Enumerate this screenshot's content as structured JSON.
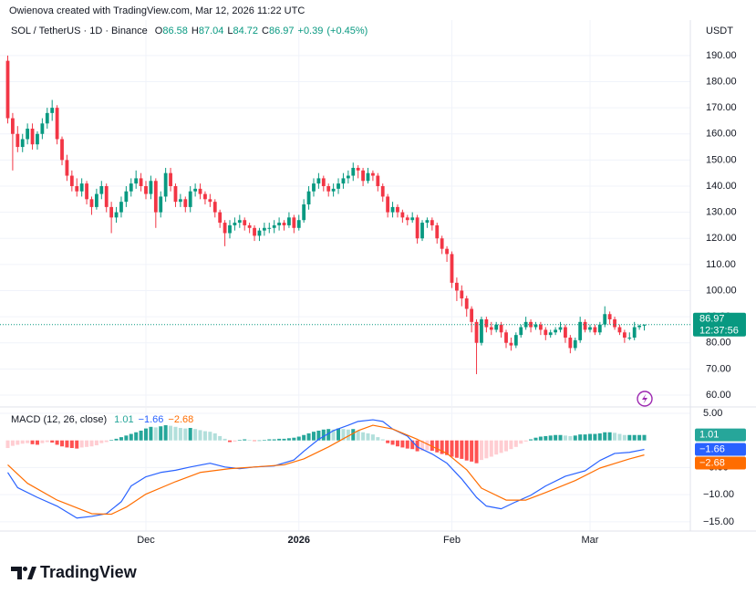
{
  "header": {
    "credit": "Owienova created with TradingView.com, Mar 12, 2026 11:22 UTC"
  },
  "chart_data": [
    {
      "type": "candlestick",
      "title": "SOL / TetherUS · 1D · Binance",
      "ohlc_letters": [
        "O",
        "H",
        "L",
        "C"
      ],
      "change": {
        "value": 0.39,
        "label": "+0.39"
      },
      "change_pct": {
        "value": 0.45,
        "label": "(+0.45%)"
      },
      "y_axis_label": "USDT",
      "countdown": "12:37:56",
      "up_color": "#089981",
      "down_color": "#f23645",
      "grid": true,
      "ylim": [
        55.8,
        194.5
      ],
      "yticks": [
        {
          "value": 60,
          "label": "60.00"
        },
        {
          "value": 70,
          "label": "70.00"
        },
        {
          "value": 80,
          "label": "80.00"
        },
        {
          "value": 90,
          "label": "90.00"
        },
        {
          "value": 100,
          "label": "100.00"
        },
        {
          "value": 110,
          "label": "110.00"
        },
        {
          "value": 120,
          "label": "120.00"
        },
        {
          "value": 130,
          "label": "130.00"
        },
        {
          "value": 140,
          "label": "140.00"
        },
        {
          "value": 150,
          "label": "150.00"
        },
        {
          "value": 160,
          "label": "160.00"
        },
        {
          "value": 170,
          "label": "170.00"
        },
        {
          "value": 180,
          "label": "180.00"
        },
        {
          "value": 190,
          "label": "190.00"
        }
      ],
      "ohlc": [
        [
          188,
          190,
          164,
          166
        ],
        [
          166,
          168,
          146,
          160
        ],
        [
          160,
          163,
          153,
          155
        ],
        [
          155,
          160,
          153,
          158
        ],
        [
          158,
          164,
          156,
          162
        ],
        [
          162,
          164,
          154,
          156
        ],
        [
          156,
          161,
          154,
          160
        ],
        [
          160,
          166,
          158,
          164
        ],
        [
          164,
          170,
          162,
          168
        ],
        [
          168,
          173,
          165,
          170
        ],
        [
          170,
          171,
          156,
          158
        ],
        [
          158,
          159,
          148,
          150
        ],
        [
          150,
          152,
          142,
          144
        ],
        [
          144,
          146,
          138,
          140
        ],
        [
          140,
          143,
          136,
          138
        ],
        [
          138,
          143,
          136,
          141
        ],
        [
          141,
          142,
          133,
          135
        ],
        [
          135,
          136,
          129,
          132
        ],
        [
          132,
          139,
          131,
          137
        ],
        [
          137,
          142,
          135,
          140
        ],
        [
          140,
          141,
          130,
          132
        ],
        [
          132,
          134,
          122,
          128
        ],
        [
          128,
          132,
          126,
          130
        ],
        [
          130,
          136,
          128,
          134
        ],
        [
          134,
          140,
          132,
          138
        ],
        [
          138,
          143,
          136,
          141
        ],
        [
          141,
          146,
          139,
          143
        ],
        [
          143,
          145,
          138,
          140
        ],
        [
          140,
          142,
          135,
          137
        ],
        [
          137,
          144,
          135,
          142
        ],
        [
          142,
          143,
          124,
          130
        ],
        [
          130,
          138,
          128,
          136
        ],
        [
          136,
          147,
          134,
          145
        ],
        [
          145,
          147,
          138,
          140
        ],
        [
          140,
          141,
          132,
          134
        ],
        [
          134,
          137,
          132,
          135
        ],
        [
          135,
          136,
          130,
          132
        ],
        [
          132,
          140,
          130,
          138
        ],
        [
          138,
          141,
          136,
          139
        ],
        [
          139,
          141,
          135,
          137
        ],
        [
          137,
          138,
          133,
          135
        ],
        [
          135,
          137,
          132,
          134
        ],
        [
          134,
          135,
          128,
          130
        ],
        [
          130,
          131,
          124,
          126
        ],
        [
          126,
          127,
          117,
          122
        ],
        [
          122,
          127,
          120,
          125
        ],
        [
          125,
          128,
          123,
          126
        ],
        [
          126,
          129,
          124,
          127
        ],
        [
          127,
          128,
          123,
          125
        ],
        [
          125,
          126,
          122,
          124
        ],
        [
          124,
          125,
          119,
          121
        ],
        [
          121,
          124,
          119,
          123
        ],
        [
          123,
          126,
          121,
          124
        ],
        [
          124,
          126,
          122,
          124
        ],
        [
          124,
          127,
          122,
          125
        ],
        [
          125,
          128,
          123,
          126
        ],
        [
          126,
          127,
          123,
          125
        ],
        [
          125,
          130,
          124,
          128
        ],
        [
          128,
          129,
          122,
          124
        ],
        [
          124,
          129,
          123,
          127
        ],
        [
          127,
          135,
          126,
          133
        ],
        [
          133,
          140,
          131,
          138
        ],
        [
          138,
          143,
          136,
          141
        ],
        [
          141,
          145,
          139,
          143
        ],
        [
          143,
          144,
          138,
          140
        ],
        [
          140,
          141,
          136,
          138
        ],
        [
          138,
          141,
          136,
          139
        ],
        [
          139,
          143,
          137,
          141
        ],
        [
          141,
          145,
          139,
          143
        ],
        [
          143,
          146,
          141,
          144
        ],
        [
          144,
          149,
          142,
          147
        ],
        [
          147,
          148,
          143,
          146
        ],
        [
          146,
          147,
          140,
          142
        ],
        [
          142,
          147,
          141,
          145
        ],
        [
          145,
          146,
          142,
          144
        ],
        [
          144,
          145,
          138,
          140
        ],
        [
          140,
          141,
          134,
          136
        ],
        [
          136,
          137,
          128,
          130
        ],
        [
          130,
          134,
          128,
          132
        ],
        [
          132,
          133,
          128,
          130
        ],
        [
          130,
          131,
          126,
          128
        ],
        [
          128,
          129,
          125,
          127
        ],
        [
          127,
          130,
          126,
          128
        ],
        [
          128,
          129,
          118,
          120
        ],
        [
          120,
          127,
          119,
          126
        ],
        [
          126,
          128,
          124,
          127
        ],
        [
          127,
          128,
          123,
          125
        ],
        [
          125,
          126,
          118,
          120
        ],
        [
          120,
          121,
          114,
          116
        ],
        [
          116,
          117,
          111,
          114
        ],
        [
          114,
          115,
          101,
          103
        ],
        [
          103,
          105,
          96,
          100
        ],
        [
          100,
          102,
          94,
          97
        ],
        [
          97,
          98,
          90,
          93
        ],
        [
          93,
          94,
          84,
          88
        ],
        [
          88,
          89,
          68,
          80
        ],
        [
          80,
          90,
          79,
          89
        ],
        [
          89,
          90,
          84,
          86
        ],
        [
          86,
          88,
          83,
          85
        ],
        [
          85,
          88,
          84,
          87
        ],
        [
          87,
          88,
          82,
          84
        ],
        [
          84,
          85,
          78,
          80
        ],
        [
          80,
          82,
          77,
          79
        ],
        [
          79,
          84,
          78,
          83
        ],
        [
          83,
          87,
          82,
          86
        ],
        [
          86,
          90,
          85,
          88
        ],
        [
          88,
          89,
          84,
          86
        ],
        [
          86,
          88,
          85,
          87
        ],
        [
          87,
          88,
          83,
          85
        ],
        [
          85,
          86,
          81,
          83
        ],
        [
          83,
          85,
          82,
          84
        ],
        [
          84,
          86,
          83,
          85
        ],
        [
          85,
          88,
          84,
          86
        ],
        [
          86,
          87,
          80,
          82
        ],
        [
          82,
          83,
          76,
          78
        ],
        [
          78,
          82,
          77,
          81
        ],
        [
          81,
          90,
          80,
          88
        ],
        [
          88,
          89,
          84,
          85
        ],
        [
          85,
          87,
          84,
          86
        ],
        [
          86,
          87,
          83,
          84
        ],
        [
          84,
          88,
          83,
          87
        ],
        [
          87,
          94,
          86,
          91
        ],
        [
          91,
          92,
          87,
          89
        ],
        [
          89,
          90,
          85,
          86
        ],
        [
          86,
          87,
          83,
          84
        ],
        [
          84,
          85,
          80,
          82
        ],
        [
          82,
          84,
          81,
          82
        ],
        [
          82,
          88,
          81,
          86
        ],
        [
          86,
          87,
          85,
          86.58
        ],
        [
          86.58,
          87.04,
          84.72,
          86.97
        ]
      ]
    },
    {
      "type": "macd",
      "title": "MACD (12, 26, close)",
      "xlim": [
        -1.57,
        138.33
      ],
      "xticks": [
        {
          "value": 28,
          "label": "Dec"
        },
        {
          "value": 59,
          "label": "2026"
        },
        {
          "value": 90,
          "label": "Feb"
        },
        {
          "value": 118,
          "label": "Mar"
        }
      ],
      "ylim": [
        -16.7,
        6.0
      ],
      "yticks": [
        {
          "value": 5,
          "label": "5.00"
        },
        {
          "value": -5,
          "label": "−5.00"
        },
        {
          "value": -10,
          "label": "−10.00"
        },
        {
          "value": -15,
          "label": "−15.00"
        }
      ],
      "last_values": [
        {
          "value": 1.01,
          "label": "1.01"
        },
        {
          "value": -1.66,
          "label": "−1.66"
        },
        {
          "value": -2.68,
          "label": "−2.68"
        }
      ],
      "histogram": {
        "colors": [
          "#26a69a",
          "#b2dfdb",
          "#ffcdd2",
          "#ff5252"
        ],
        "values": [
          -1.4,
          -1.0,
          -0.8,
          -0.6,
          -0.5,
          -0.7,
          -0.8,
          -0.5,
          -0.3,
          -0.4,
          -0.8,
          -1.1,
          -1.3,
          -1.4,
          -1.5,
          -1.3,
          -1.2,
          -1.1,
          -0.9,
          -0.5,
          -0.3,
          0.1,
          0.3,
          0.6,
          0.9,
          1.2,
          1.5,
          1.8,
          2.2,
          2.5,
          2.4,
          2.6,
          2.8,
          2.7,
          2.5,
          2.3,
          2.2,
          2.3,
          2.1,
          1.9,
          1.7,
          1.6,
          1.3,
          0.8,
          0.3,
          -0.3,
          -0.2,
          0.1,
          0.2,
          0.1,
          -0.1,
          0.0,
          0.1,
          0.2,
          0.2,
          0.3,
          0.3,
          0.4,
          0.5,
          0.7,
          1.0,
          1.3,
          1.6,
          1.8,
          2.0,
          2.1,
          2.0,
          2.2,
          2.1,
          2.0,
          2.1,
          1.8,
          1.5,
          1.3,
          1.1,
          0.6,
          0.2,
          -0.5,
          -0.8,
          -1.1,
          -1.3,
          -1.5,
          -1.6,
          -2.0,
          -1.9,
          -1.8,
          -1.9,
          -2.2,
          -2.5,
          -2.7,
          -3.0,
          -3.2,
          -3.4,
          -3.7,
          -3.9,
          -4.2,
          -3.6,
          -3.3,
          -3.0,
          -2.6,
          -2.3,
          -2.0,
          -1.6,
          -1.2,
          -0.6,
          -0.2,
          0.2,
          0.5,
          0.7,
          0.8,
          0.9,
          1.0,
          1.0,
          0.9,
          0.8,
          0.9,
          1.1,
          1.1,
          1.2,
          1.2,
          1.3,
          1.5,
          1.5,
          1.4,
          1.2,
          1.0,
          1.0,
          1.0,
          1.0,
          1.01
        ]
      },
      "macd_line": {
        "color": "#2962ff",
        "x": [
          0,
          2,
          6,
          10,
          14,
          17,
          20,
          23,
          25,
          28,
          31,
          34,
          37,
          41,
          44,
          47,
          50,
          54,
          58,
          60,
          63,
          66,
          69,
          71,
          74,
          76,
          78,
          81,
          83,
          86,
          89,
          92,
          95,
          97,
          100,
          103,
          106,
          109,
          113,
          117,
          120,
          123,
          126,
          129
        ],
        "values": [
          -5.9,
          -8.7,
          -10.5,
          -12.1,
          -14.3,
          -14.0,
          -13.5,
          -11.3,
          -8.4,
          -6.7,
          -5.9,
          -5.5,
          -4.9,
          -4.2,
          -4.9,
          -5.2,
          -4.9,
          -4.7,
          -3.6,
          -2.0,
          0.2,
          1.8,
          2.8,
          3.5,
          3.8,
          3.5,
          2.1,
          0.8,
          -1.2,
          -2.5,
          -4.2,
          -7.1,
          -10.5,
          -12.1,
          -12.6,
          -11.3,
          -10.1,
          -8.4,
          -6.6,
          -5.6,
          -3.7,
          -2.4,
          -2.2,
          -1.66
        ]
      },
      "signal_line": {
        "color": "#ff6d00",
        "x": [
          0,
          4,
          10,
          17,
          21,
          24,
          28,
          34,
          39,
          45,
          50,
          56,
          60,
          65,
          71,
          74,
          78,
          83,
          89,
          93,
          96,
          101,
          105,
          109,
          115,
          120,
          126,
          129
        ],
        "values": [
          -4.5,
          -7.9,
          -11,
          -13.5,
          -13.6,
          -12.3,
          -9.9,
          -7.6,
          -5.9,
          -5.2,
          -4.9,
          -4.5,
          -3.4,
          -1.2,
          1.8,
          2.8,
          2.1,
          0.2,
          -2.4,
          -5.4,
          -8.8,
          -11,
          -11,
          -9.6,
          -7.4,
          -5.1,
          -3.4,
          -2.68
        ]
      }
    }
  ],
  "footer": {
    "brand": "TradingView"
  }
}
